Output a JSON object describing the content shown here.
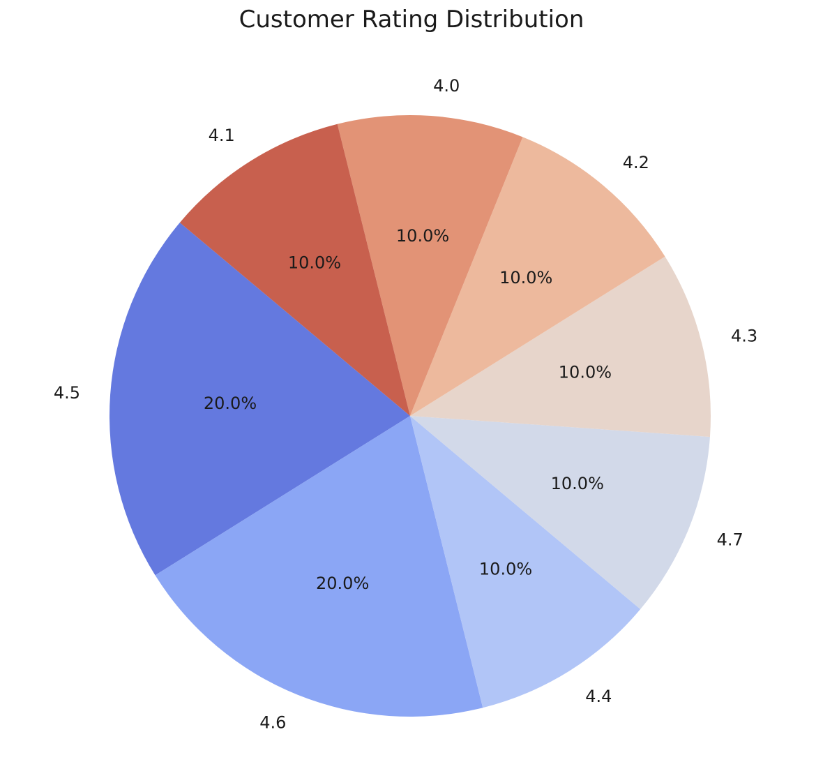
{
  "chart_data": {
    "type": "pie",
    "title": "Customer Rating Distribution",
    "start_angle_deg": 140,
    "direction": "counterclockwise",
    "slices": [
      {
        "label": "4.5",
        "value": 20.0,
        "pct_text": "20.0%",
        "color": "#6479df"
      },
      {
        "label": "4.6",
        "value": 20.0,
        "pct_text": "20.0%",
        "color": "#8ba6f5"
      },
      {
        "label": "4.4",
        "value": 10.0,
        "pct_text": "10.0%",
        "color": "#b1c5f7"
      },
      {
        "label": "4.7",
        "value": 10.0,
        "pct_text": "10.0%",
        "color": "#d2d9e9"
      },
      {
        "label": "4.3",
        "value": 10.0,
        "pct_text": "10.0%",
        "color": "#e7d5cb"
      },
      {
        "label": "4.2",
        "value": 10.0,
        "pct_text": "10.0%",
        "color": "#edb99d"
      },
      {
        "label": "4.0",
        "value": 10.0,
        "pct_text": "10.0%",
        "color": "#e29376"
      },
      {
        "label": "4.1",
        "value": 10.0,
        "pct_text": "10.0%",
        "color": "#c8604e"
      }
    ]
  }
}
